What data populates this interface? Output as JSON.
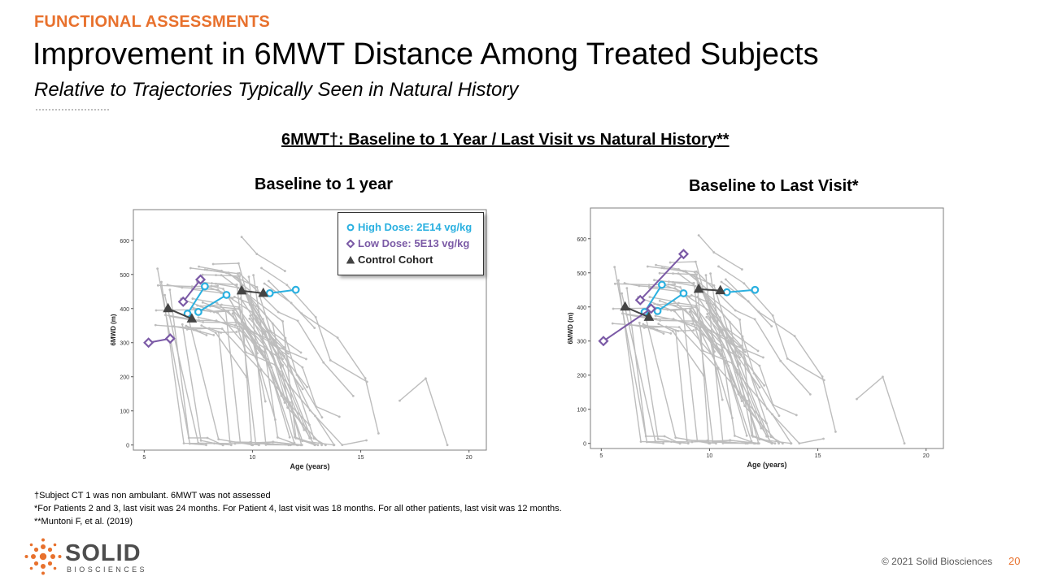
{
  "header": {
    "kicker": "FUNCTIONAL ASSESSMENTS",
    "title": "Improvement in 6MWT Distance Among Treated Subjects",
    "subtitle": "Relative to Trajectories Typically Seen in Natural History"
  },
  "section_title": "6MWT†: Baseline to 1 Year / Last Visit vs Natural History**",
  "legend": {
    "high": "High Dose: 2E14 vg/kg",
    "low": "Low Dose: 5E13 vg/kg",
    "control": "Control Cohort"
  },
  "colors": {
    "high": "#2ab0e0",
    "low": "#7b5aa6",
    "control": "#444444",
    "natural_history": "#bdbdbd",
    "accent": "#e8712d"
  },
  "chart_data": [
    {
      "type": "line",
      "title": "Baseline to 1 year",
      "xlabel": "Age (years)",
      "ylabel": "6MWD (m)",
      "xlim": [
        4.5,
        20.8
      ],
      "ylim": [
        -15,
        690
      ],
      "xticks": [
        5,
        10,
        15,
        20
      ],
      "yticks": [
        0,
        100,
        200,
        300,
        400,
        500,
        600
      ],
      "series": [
        {
          "group": "high",
          "points": [
            [
              7.8,
              465
            ],
            [
              7,
              385
            ]
          ]
        },
        {
          "group": "high",
          "points": [
            [
              7.5,
              390
            ],
            [
              8.8,
              440
            ]
          ]
        },
        {
          "group": "high",
          "points": [
            [
              10.8,
              445
            ],
            [
              12,
              455
            ]
          ]
        },
        {
          "group": "low",
          "points": [
            [
              7.6,
              485
            ],
            [
              6.8,
              420
            ]
          ]
        },
        {
          "group": "low",
          "points": [
            [
              5.2,
              300
            ],
            [
              6.2,
              312
            ]
          ]
        },
        {
          "group": "control",
          "points": [
            [
              6.1,
              400
            ],
            [
              7.2,
              370
            ]
          ]
        },
        {
          "group": "control",
          "points": [
            [
              9.5,
              452
            ],
            [
              10.5,
              445
            ]
          ]
        }
      ]
    },
    {
      "type": "line",
      "title": "Baseline to Last Visit*",
      "xlabel": "Age (years)",
      "ylabel": "6MWD (m)",
      "xlim": [
        4.5,
        20.8
      ],
      "ylim": [
        -15,
        690
      ],
      "xticks": [
        5,
        10,
        15,
        20
      ],
      "yticks": [
        0,
        100,
        200,
        300,
        400,
        500,
        600
      ],
      "series": [
        {
          "group": "high",
          "points": [
            [
              7.8,
              465
            ],
            [
              7,
              385
            ]
          ]
        },
        {
          "group": "high",
          "points": [
            [
              7.6,
              388
            ],
            [
              8.8,
              440
            ]
          ]
        },
        {
          "group": "high",
          "points": [
            [
              10.8,
              443
            ],
            [
              12.1,
              450
            ]
          ]
        },
        {
          "group": "low",
          "points": [
            [
              6.8,
              420
            ],
            [
              8.8,
              555
            ]
          ]
        },
        {
          "group": "low",
          "points": [
            [
              5.1,
              300
            ],
            [
              7.3,
              395
            ]
          ]
        },
        {
          "group": "control",
          "points": [
            [
              6.1,
              400
            ],
            [
              7.2,
              370
            ]
          ]
        },
        {
          "group": "control",
          "points": [
            [
              9.5,
              452
            ],
            [
              10.5,
              448
            ]
          ]
        }
      ]
    }
  ],
  "footnotes": [
    "†Subject CT 1 was non ambulant. 6MWT was not assessed",
    "*For Patients 2 and 3, last visit was 24 months. For Patient 4, last visit was 18 months.  For all other patients, last visit was 12 months.",
    " **Muntoni F, et al. (2019)"
  ],
  "logo": {
    "word": "SOLID",
    "sub": "BIOSCIENCES"
  },
  "footer": {
    "copyright": "© 2021 Solid Biosciences",
    "page": "20"
  }
}
